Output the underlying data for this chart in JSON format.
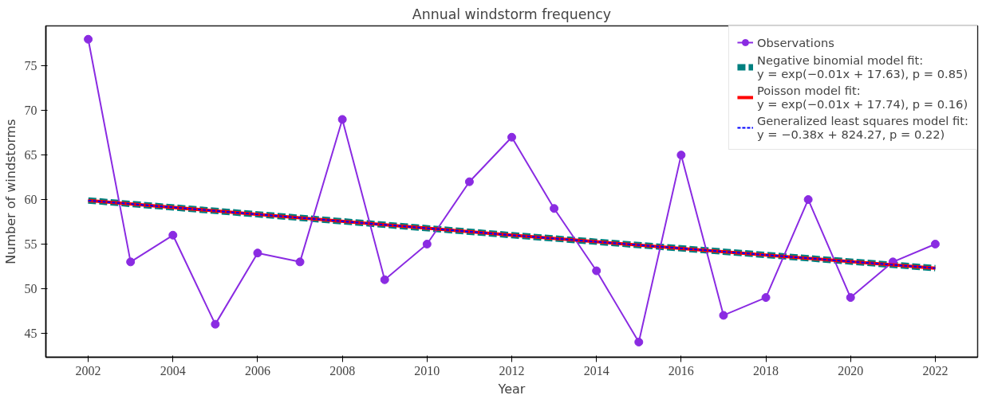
{
  "chart_data": {
    "type": "line",
    "title": "Annual windstorm frequency",
    "xlabel": "Year",
    "ylabel": "Number of windstorms",
    "xlim": [
      2001,
      2023
    ],
    "xticks": [
      2002,
      2004,
      2006,
      2008,
      2010,
      2012,
      2014,
      2016,
      2018,
      2020,
      2022
    ],
    "ylim": [
      42.3,
      79.5
    ],
    "yticks": [
      45,
      50,
      55,
      60,
      65,
      70,
      75
    ],
    "grid": false,
    "legend": "top right",
    "series": [
      {
        "name": "Observations",
        "color": "#8a2be2",
        "marker": "circle",
        "line_style": "solid",
        "x": [
          2002,
          2003,
          2004,
          2005,
          2006,
          2007,
          2008,
          2009,
          2010,
          2011,
          2012,
          2013,
          2014,
          2015,
          2016,
          2017,
          2018,
          2019,
          2020,
          2021,
          2022
        ],
        "values": [
          78,
          53,
          56,
          46,
          54,
          53,
          69,
          51,
          55,
          62,
          67,
          59,
          52,
          44,
          65,
          47,
          49,
          60,
          49,
          53,
          55
        ]
      },
      {
        "name": "Negative binomial model fit:\ny = exp(−0.01x + 17.63), p = 0.85)",
        "color": "#008080",
        "marker": "none",
        "line_style": "dashed",
        "x": [
          2002,
          2012,
          2022
        ],
        "values": [
          59.9,
          56.0,
          52.3
        ]
      },
      {
        "name": "Poisson model fit:\ny = exp(−0.01x + 17.74), p = 0.16)",
        "color": "#ff0000",
        "marker": "none",
        "line_style": "solid",
        "x": [
          2002,
          2012,
          2022
        ],
        "values": [
          59.9,
          56.0,
          52.3
        ]
      },
      {
        "name": "Generalized least squares model fit:\ny = −0.38x + 824.27, p = 0.22)",
        "color": "#0000ff",
        "marker": "none",
        "line_style": "dashed",
        "x": [
          2002,
          2012,
          2022
        ],
        "values": [
          59.9,
          56.0,
          52.3
        ]
      }
    ]
  }
}
